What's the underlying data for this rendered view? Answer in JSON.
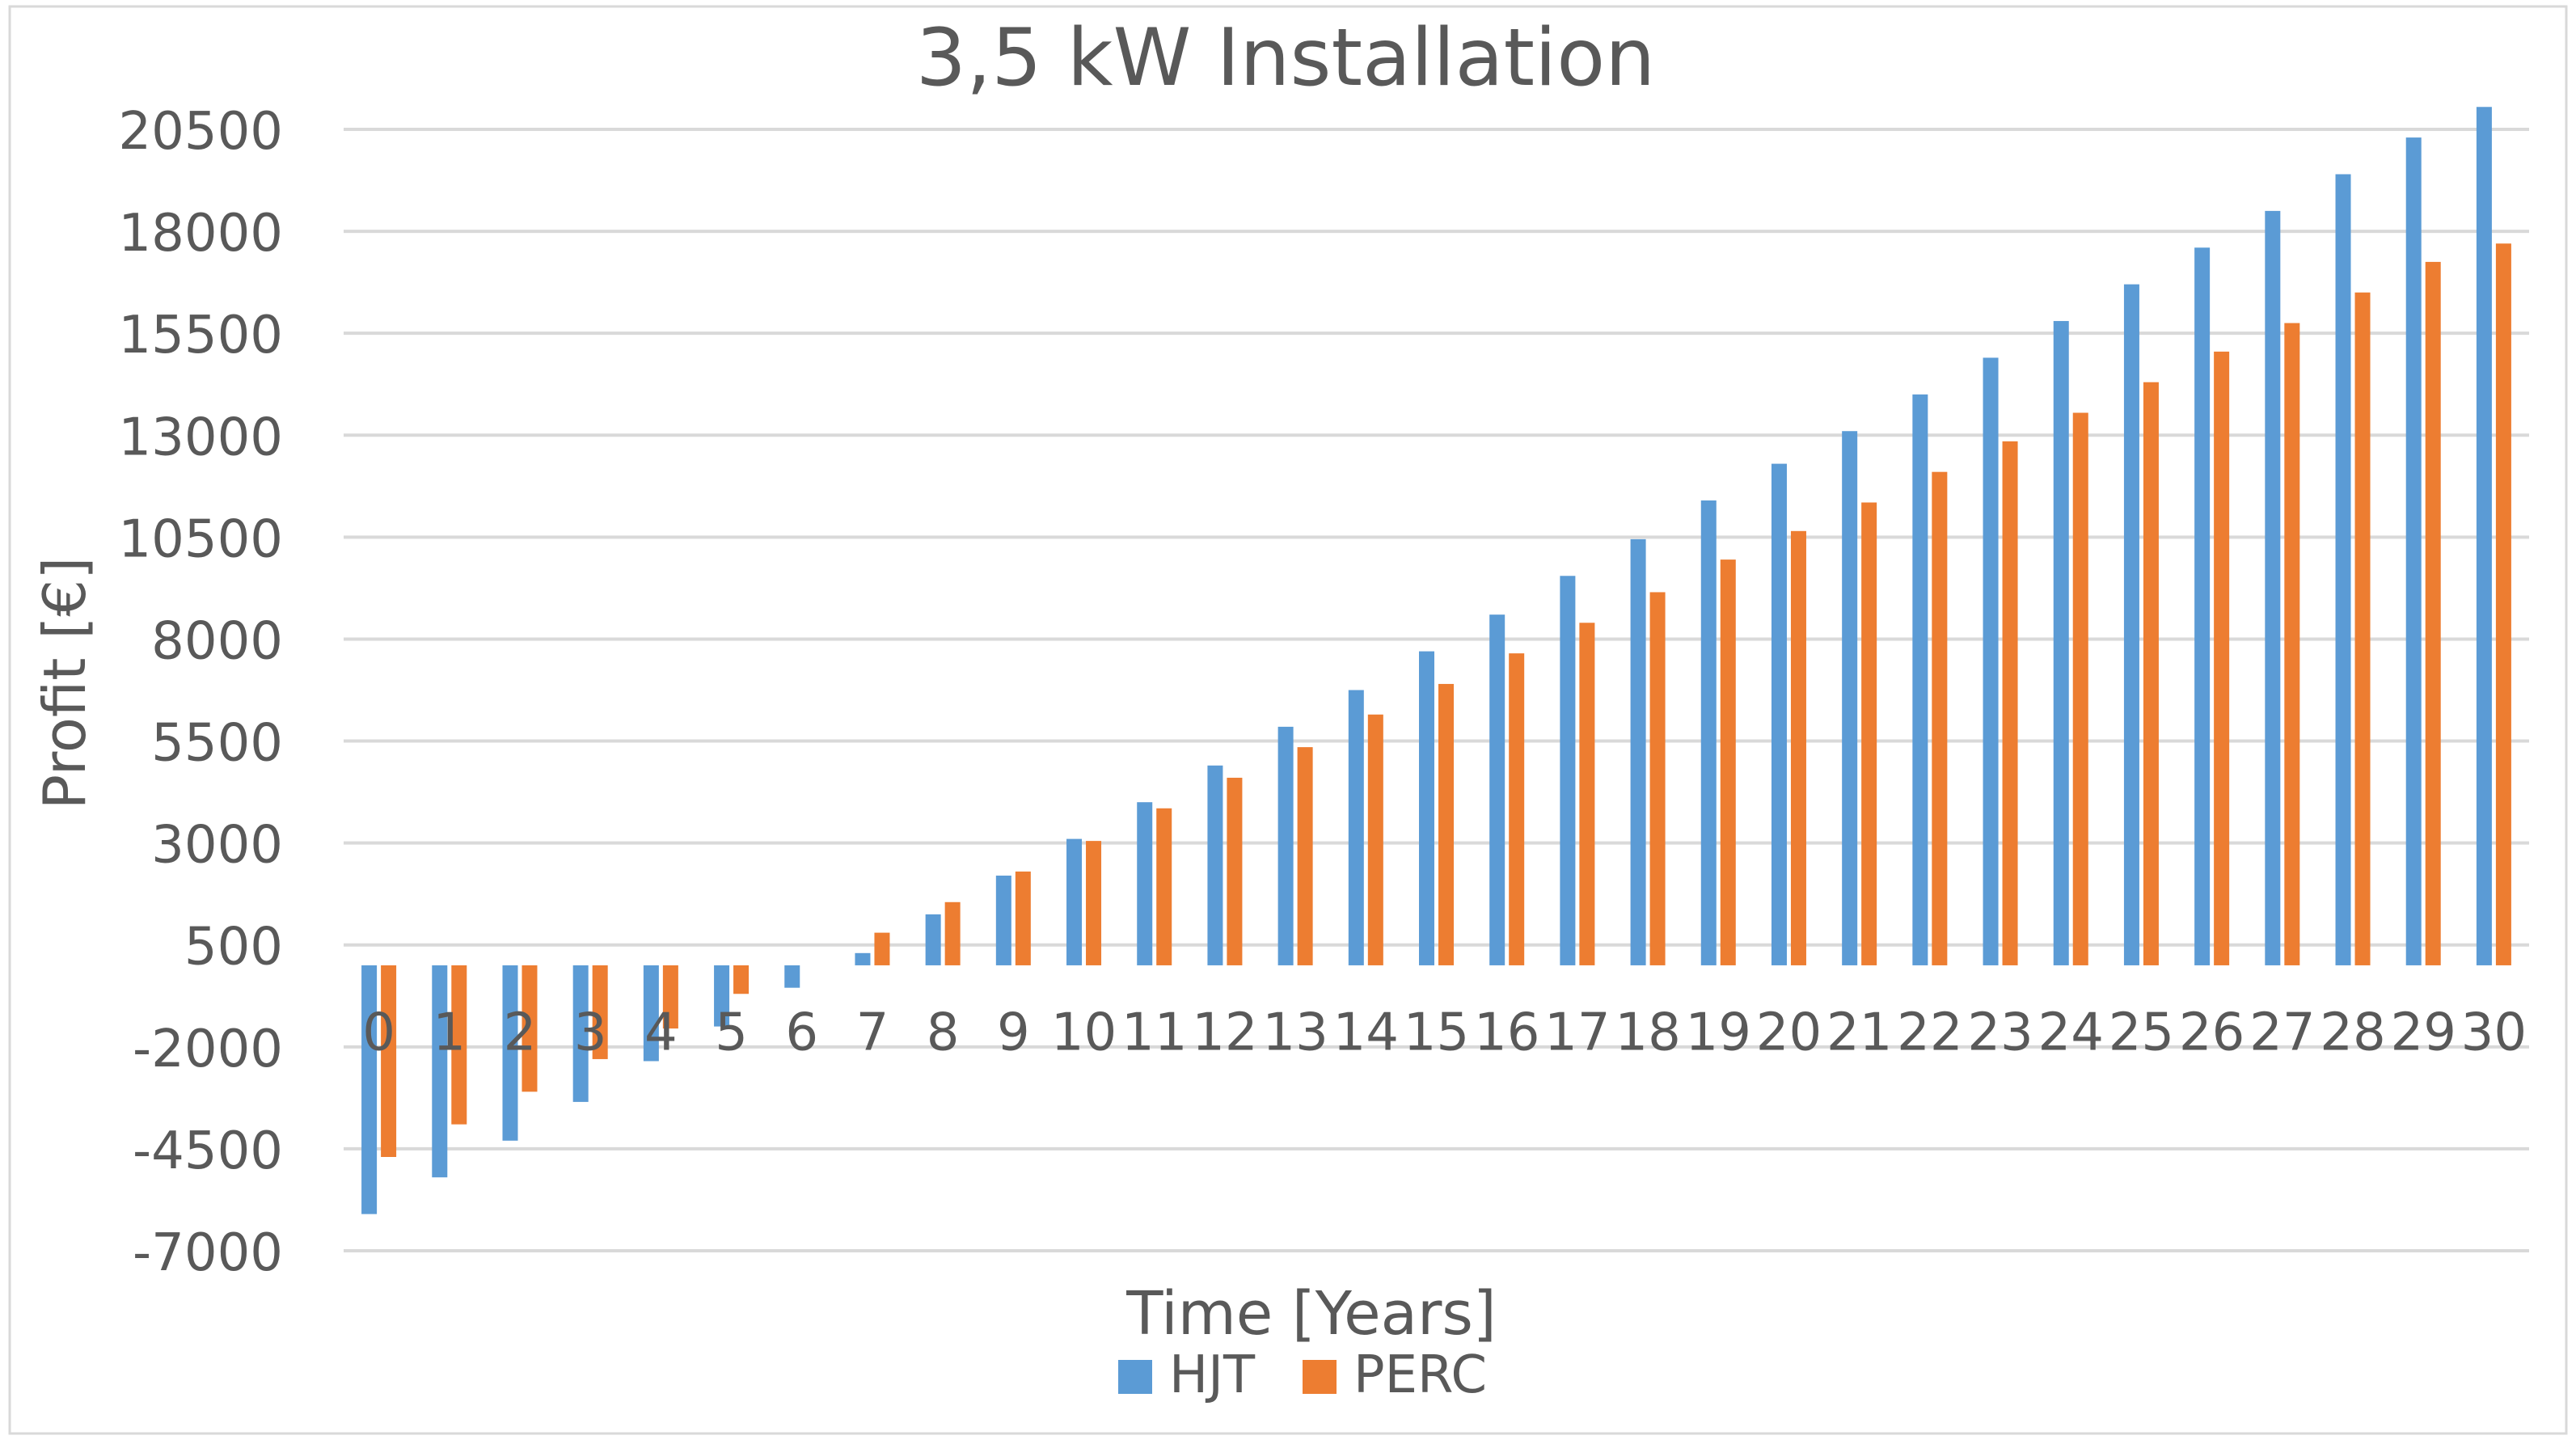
{
  "chart_data": {
    "type": "bar",
    "title": "3,5 kW Installation",
    "xlabel": "Time [Years]",
    "ylabel": "Profit [€]",
    "categories": [
      "0",
      "1",
      "2",
      "3",
      "4",
      "5",
      "6",
      "7",
      "8",
      "9",
      "10",
      "11",
      "12",
      "13",
      "14",
      "15",
      "16",
      "17",
      "18",
      "19",
      "20",
      "21",
      "22",
      "23",
      "24",
      "25",
      "26",
      "27",
      "28",
      "29",
      "30"
    ],
    "y_ticks": [
      "20500",
      "18000",
      "15500",
      "13000",
      "10500",
      "8000",
      "5500",
      "3000",
      "500",
      "-2000",
      "-4500",
      "-7000"
    ],
    "y_tick_values": [
      20500,
      18000,
      15500,
      13000,
      10500,
      8000,
      5500,
      3000,
      500,
      -2000,
      -4500,
      -7000
    ],
    "ylim": [
      -7000,
      20500
    ],
    "grid": true,
    "legend_position": "bottom",
    "series": [
      {
        "name": "HJT",
        "color": "#5B9BD5",
        "values": [
          -6100,
          -5200,
          -4300,
          -3350,
          -2350,
          -1500,
          -550,
          300,
          1250,
          2200,
          3100,
          4000,
          4900,
          5850,
          6750,
          7700,
          8600,
          9550,
          10450,
          11400,
          12300,
          13100,
          14000,
          14900,
          15800,
          16700,
          17600,
          18500,
          19400,
          20300,
          21050
        ]
      },
      {
        "name": "PERC",
        "color": "#ED7D31",
        "values": [
          -4700,
          -3900,
          -3100,
          -2300,
          -1550,
          -700,
          0,
          800,
          1550,
          2300,
          3050,
          3850,
          4600,
          5350,
          6150,
          6900,
          7650,
          8400,
          9150,
          9950,
          10650,
          11350,
          12100,
          12850,
          13550,
          14300,
          15050,
          15750,
          16500,
          17250,
          17700
        ]
      }
    ]
  }
}
